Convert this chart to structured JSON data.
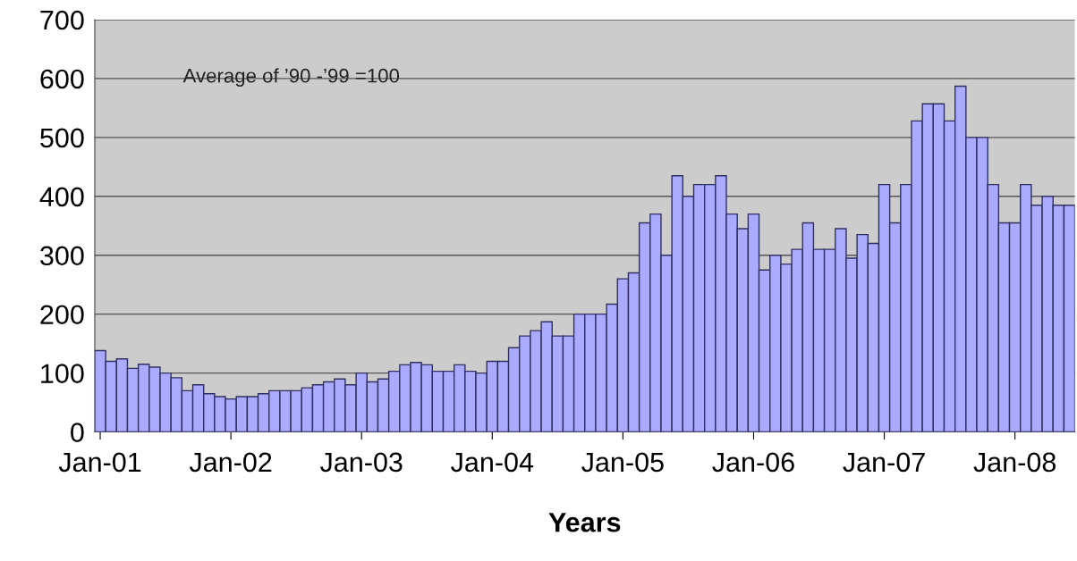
{
  "chart_data": {
    "type": "bar",
    "xlabel": "Years",
    "categories": [
      "Jan-01",
      null,
      null,
      null,
      null,
      null,
      null,
      null,
      null,
      null,
      null,
      null,
      "Jan-02",
      null,
      null,
      null,
      null,
      null,
      null,
      null,
      null,
      null,
      null,
      null,
      "Jan-03",
      null,
      null,
      null,
      null,
      null,
      null,
      null,
      null,
      null,
      null,
      null,
      "Jan-04",
      null,
      null,
      null,
      null,
      null,
      null,
      null,
      null,
      null,
      null,
      null,
      "Jan-05",
      null,
      null,
      null,
      null,
      null,
      null,
      null,
      null,
      null,
      null,
      null,
      "Jan-06",
      null,
      null,
      null,
      null,
      null,
      null,
      null,
      null,
      null,
      null,
      null,
      "Jan-07",
      null,
      null,
      null,
      null,
      null,
      null,
      null,
      null,
      null,
      null,
      null,
      "Jan-08",
      null,
      null,
      null,
      null,
      null
    ],
    "values": [
      138,
      120,
      124,
      108,
      115,
      110,
      100,
      92,
      70,
      80,
      65,
      60,
      56,
      60,
      60,
      65,
      70,
      70,
      70,
      75,
      80,
      85,
      90,
      80,
      100,
      85,
      90,
      103,
      114,
      118,
      114,
      103,
      103,
      114,
      103,
      100,
      120,
      120,
      143,
      163,
      172,
      187,
      163,
      163,
      200,
      200,
      200,
      217,
      260,
      270,
      355,
      370,
      300,
      435,
      400,
      420,
      420,
      435,
      370,
      345,
      370,
      275,
      300,
      285,
      310,
      355,
      310,
      310,
      345,
      295,
      335,
      320,
      420,
      355,
      420,
      528,
      557,
      557,
      528,
      587,
      500,
      500,
      420,
      355,
      355,
      420,
      385,
      400,
      385,
      385
    ],
    "color": "#aaaaff",
    "ylim": [
      0,
      700
    ],
    "yticks": [
      0,
      100,
      200,
      300,
      400,
      500,
      600,
      700
    ],
    "grid": "y",
    "annotations": [
      {
        "text": "Average of ’90 -’99 =100"
      }
    ]
  }
}
